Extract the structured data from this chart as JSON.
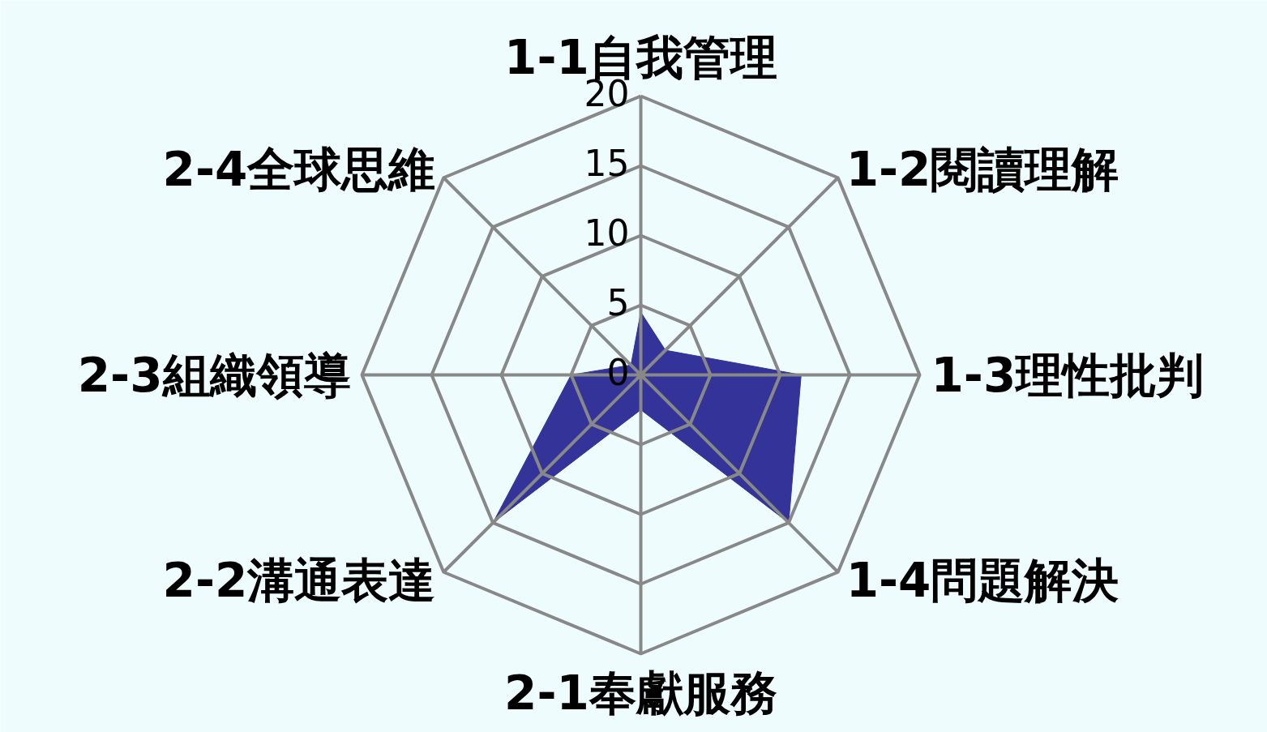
{
  "chart_data": {
    "type": "radar",
    "categories": [
      "1-1自我管理",
      "1-2閱讀理解",
      "1-3理性批判",
      "1-4問題解決",
      "2-1奉獻服務",
      "2-2溝通表達",
      "2-3組織領導",
      "2-4全球思維"
    ],
    "series": [
      {
        "type": "area",
        "color": "#333399",
        "values": [
          4.5,
          2.5,
          11.5,
          15,
          2.5,
          15,
          5,
          1
        ]
      }
    ],
    "ylim": [
      0,
      20
    ],
    "yticks": [
      0,
      5,
      10,
      15,
      20
    ],
    "grid": true
  }
}
